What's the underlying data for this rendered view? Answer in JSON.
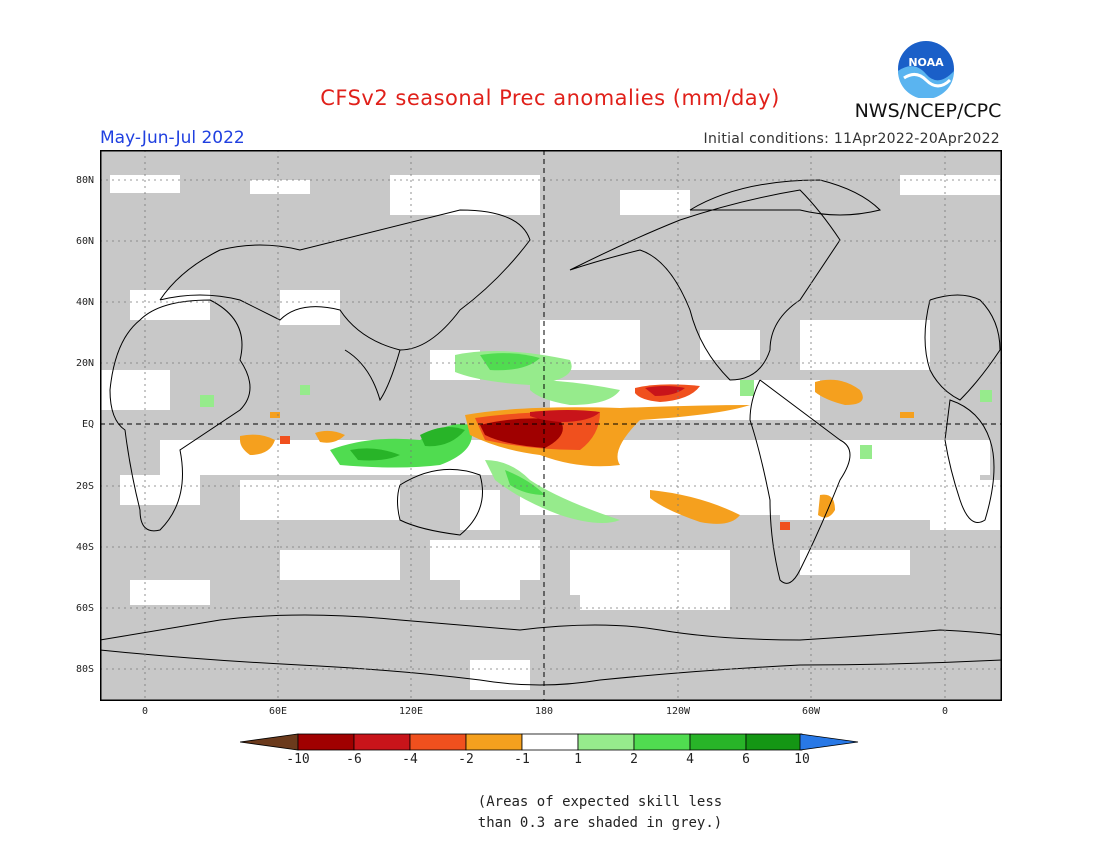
{
  "title": "CFSv2 seasonal Prec anomalies (mm/day)",
  "agency": "NWS/NCEP/CPC",
  "logo_text": "NOAA",
  "season": "May-Jun-Jul 2022",
  "initial_conditions": "Initial conditions: 11Apr2022-20Apr2022",
  "lat_labels": [
    "80N",
    "60N",
    "40N",
    "20N",
    "EQ",
    "20S",
    "40S",
    "60S",
    "80S"
  ],
  "lon_labels": [
    "0",
    "60E",
    "120E",
    "180",
    "120W",
    "60W",
    "0"
  ],
  "colorbar": {
    "labels": [
      "-10",
      "-6",
      "-4",
      "-2",
      "-1",
      "1",
      "2",
      "4",
      "6",
      "10"
    ],
    "colors": [
      "#6b3a1c",
      "#a00000",
      "#c8141a",
      "#f0501e",
      "#f5a01e",
      "#ffffff",
      "#96eb8c",
      "#50dc50",
      "#28b428",
      "#149614",
      "#2878e6"
    ]
  },
  "note_line1": "(Areas of expected skill less",
  "note_line2": "than 0.3 are shaded in grey.)",
  "colors": {
    "grey": "#c8c8c8",
    "title_red": "#e0201a",
    "season_blue": "#2040e0"
  }
}
